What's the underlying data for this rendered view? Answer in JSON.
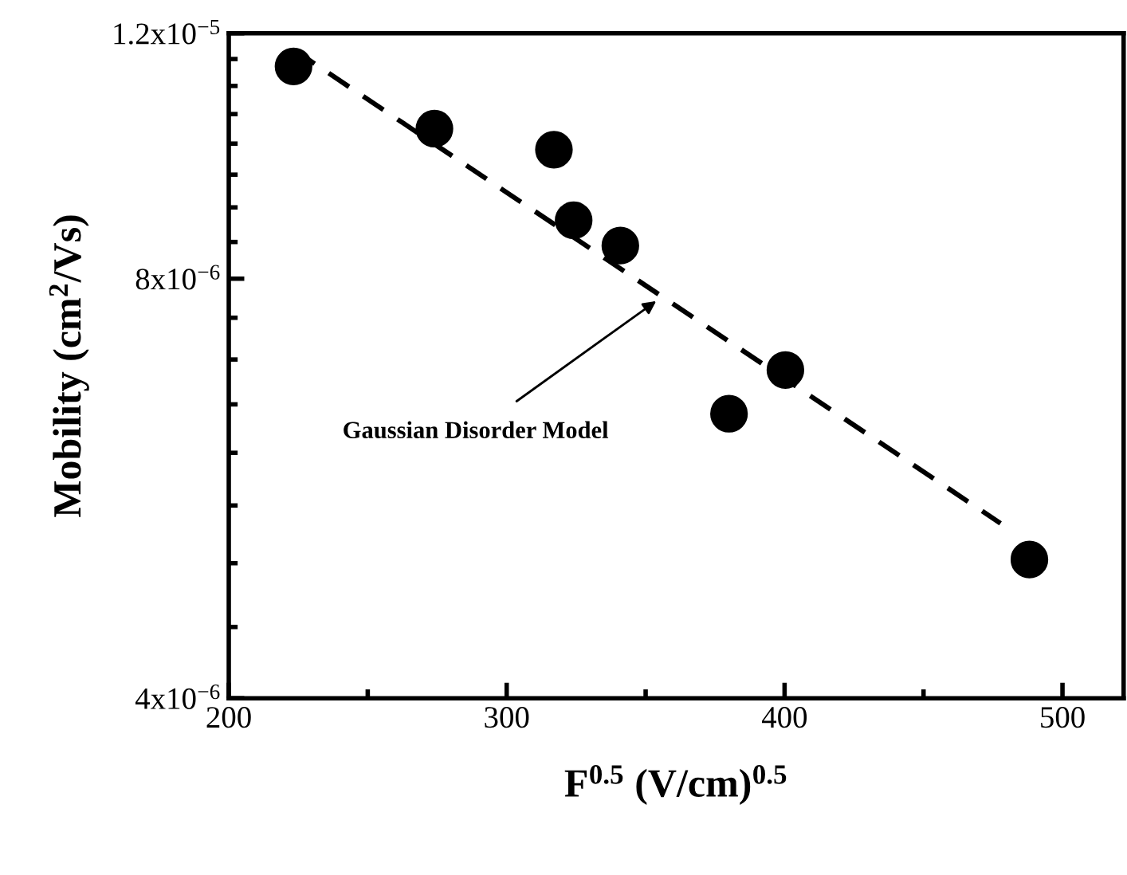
{
  "chart_data": {
    "type": "scatter",
    "xlabel": "F$^{0.5}$ (V/cm)$^{0.5}$",
    "ylabel": "Mobility (cm$^{2}$/Vs)",
    "log": "y",
    "x": [
      223.3,
      274.0,
      317.0,
      324.1,
      340.9,
      380.0,
      400.3,
      488.1
    ],
    "series": [
      {
        "color": "#000000",
        "marker": "circle",
        "values": [
          1.136e-05,
          1.025e-05,
          9.9e-06,
          8.81e-06,
          8.45e-06,
          6.4e-06,
          6.88e-06,
          5.03e-06
        ]
      },
      {
        "type": "line",
        "color": "#000000",
        "marker": "none",
        "line_style": "dashed",
        "x": [
          223.6,
          477.7
        ],
        "values": [
          1.167e-05,
          5.34e-06
        ]
      }
    ],
    "xlim": [
      200,
      522
    ],
    "ylim": [
      4e-06,
      1.2e-05
    ],
    "xticks": [
      200,
      {
        "value": 250,
        "label": null
      },
      300,
      {
        "value": 350,
        "label": null
      },
      400,
      {
        "value": 450,
        "label": null
      },
      500
    ],
    "yticks": [
      {
        "value": 4e-06,
        "label": "4x10$^{−6}$"
      },
      {
        "value": 4.5e-06,
        "label": null
      },
      {
        "value": 5e-06,
        "label": null
      },
      {
        "value": 5.5e-06,
        "label": null
      },
      {
        "value": 6e-06,
        "label": null
      },
      {
        "value": 6.5e-06,
        "label": null
      },
      {
        "value": 7e-06,
        "label": null
      },
      {
        "value": 7.5e-06,
        "label": null
      },
      {
        "value": 8e-06,
        "label": "8x10$^{−6}$"
      },
      {
        "value": 8.5e-06,
        "label": null
      },
      {
        "value": 9e-06,
        "label": null
      },
      {
        "value": 9.5e-06,
        "label": null
      },
      {
        "value": 1e-05,
        "label": null
      },
      {
        "value": 1.05e-05,
        "label": null
      },
      {
        "value": 1.1e-05,
        "label": null
      },
      {
        "value": 1.15e-05,
        "label": null
      },
      {
        "value": 1.2e-05,
        "label": "1.2x10$^{−5}$"
      }
    ],
    "annotations": [
      {
        "text": "Gaussian Disorder Model",
        "x": 353.8,
        "y": 7.71e-06
      }
    ],
    "grid": false
  }
}
